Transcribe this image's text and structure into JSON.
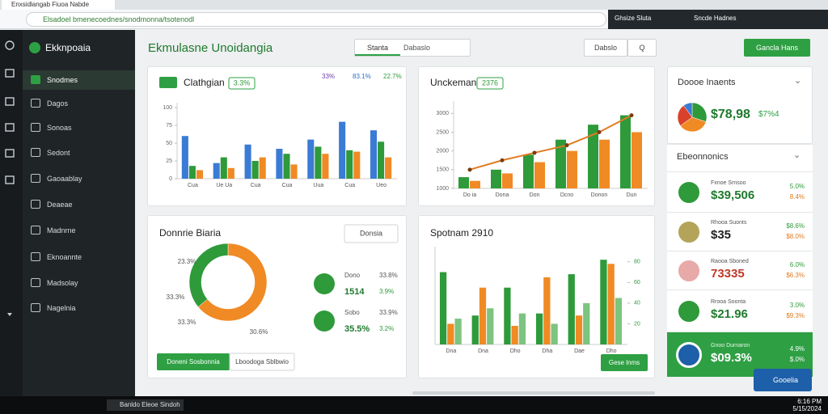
{
  "browser": {
    "tab": "Enxsidlangab Fiuoa Nabde",
    "url": "Elsadoel bmenecoednes/snodmonna/tsotenodl",
    "ext1": "Ghsize Sluta",
    "ext2": "Sncde Hadnes"
  },
  "sidebar": {
    "brand": "Ekknpoaia",
    "items": [
      "Snodmes",
      "Dagos",
      "Sonoas",
      "Sedont",
      "Gaoaablay",
      "Deaeae",
      "Madnrne",
      "Eknoannte",
      "Madsolay",
      "Nagelnia"
    ]
  },
  "header": {
    "title": "Ekmulasne Unoidangia",
    "tabs": [
      "Stanta",
      "Dabaslo"
    ],
    "filter": "Dabslo",
    "search": "Q",
    "button": "Gancla Hans"
  },
  "chart_data": [
    {
      "type": "bar",
      "title": "Clathgian",
      "badge": "3.3%",
      "annotations": [
        {
          "text": "33%",
          "color": "#6a3fb0"
        },
        {
          "text": "83.1%",
          "color": "#2f6fc0"
        },
        {
          "text": "22.7%",
          "color": "#2e9a3a"
        }
      ],
      "categories": [
        "Cua",
        "Ue Ua",
        "Cua",
        "Cua",
        "Uua",
        "Cua",
        "Ueo"
      ],
      "series": [
        {
          "color": "#3a7bd5",
          "values": [
            60,
            22,
            48,
            42,
            55,
            80,
            68
          ]
        },
        {
          "color": "#2e9a3a",
          "values": [
            18,
            30,
            25,
            35,
            45,
            40,
            52
          ]
        },
        {
          "color": "#f08a24",
          "values": [
            12,
            15,
            30,
            20,
            35,
            38,
            30
          ]
        }
      ],
      "ylim": [
        0,
        100
      ],
      "yticks": [
        0,
        25,
        50,
        75,
        100
      ]
    },
    {
      "type": "bar",
      "title": "Unckemani",
      "badge": "2376",
      "categories": [
        "Do ia",
        "Dona",
        "Don",
        "Dcno",
        "Donon",
        "Dun"
      ],
      "series": [
        {
          "color": "#2e9a3a",
          "values": [
            1300,
            1500,
            1900,
            2300,
            2700,
            2950
          ]
        },
        {
          "color": "#f08a24",
          "values": [
            1200,
            1400,
            1700,
            2000,
            2300,
            2500
          ]
        },
        {
          "type": "line",
          "color": "#e07b22",
          "values": [
            1500,
            1750,
            1950,
            2150,
            2500,
            2950
          ]
        }
      ],
      "ylim": [
        1000,
        3200
      ],
      "yticks": [
        1000,
        1500,
        2000,
        2500,
        3000
      ]
    },
    {
      "type": "donut",
      "title": "Donnrie Biaria",
      "dropdown": "Donsia",
      "values": [
        64,
        36
      ],
      "colors": [
        "#f08a24",
        "#2e9a3a"
      ],
      "annotations": [
        "23.3%",
        "33.3%",
        "33.3%",
        "30.6%"
      ],
      "legend": [
        {
          "label": "Dono",
          "pct": "33.8%",
          "value": "1514",
          "change": "3.9%"
        },
        {
          "label": "Sobo",
          "pct": "33.9%",
          "value": "35.5%",
          "change": "3.2%"
        }
      ],
      "buttons": [
        "Doneni Sosbonnia",
        "Lboodoga Sblbwio"
      ]
    },
    {
      "type": "bar",
      "title": "Spotnam 2910",
      "y_axis": "right",
      "categories": [
        "Dna",
        "Dna",
        "Dho",
        "Dha",
        "Dae",
        "Dho"
      ],
      "series": [
        {
          "color": "#2e9a3a",
          "values": [
            70,
            28,
            55,
            30,
            68,
            82
          ]
        },
        {
          "color": "#f08a24",
          "values": [
            20,
            55,
            18,
            65,
            28,
            78
          ]
        },
        {
          "color": "#7cc47f",
          "values": [
            25,
            35,
            30,
            20,
            40,
            45
          ]
        }
      ],
      "ylim": [
        0,
        90
      ],
      "yticks": [
        20,
        40,
        60,
        80
      ],
      "button": "Gese lnms"
    },
    {
      "type": "pie",
      "values": [
        30,
        35,
        25,
        10
      ],
      "colors": [
        "#2e9a3a",
        "#f08a24",
        "#d9412b",
        "#3a7bd5"
      ]
    }
  ],
  "panel": {
    "title": "Doooe Inaents",
    "total": "$78,98",
    "total_change": "$7%4",
    "section": "Ebeonnonics",
    "items": [
      {
        "label": "Fxnoe Srnsoo",
        "value": "$39,506",
        "c1": "5.0%",
        "c2": "8.4%",
        "icon_color": "#2e9a3a",
        "value_color": "#1f7a2e"
      },
      {
        "label": "Rhooa Suonts",
        "value": "$35",
        "c1": "$8.6%",
        "c2": "$8.0%",
        "icon_color": "#b3a45a",
        "value_color": "#222222"
      },
      {
        "label": "Raooa Sboned",
        "value": "73335",
        "c1": "6.0%",
        "c2": "$6.3%",
        "icon_color": "#e8a9a9",
        "value_color": "#c0392b"
      },
      {
        "label": "Rrooa Soonta",
        "value": "$21.96",
        "c1": "3.0%",
        "c2": "$9.3%",
        "icon_color": "#2e9a3a",
        "value_color": "#1f7a2e"
      },
      {
        "label": "Gnoo Durnaron",
        "value": "$09.3%",
        "c1": "4.9%",
        "c2": "$.0%",
        "icon_color": "#1d5fa8",
        "value_color": "#ffffff"
      }
    ],
    "fab": "Gooelia"
  },
  "taskbar": {
    "app": "Banldo Eleoe Sindoh",
    "time": "6:16 PM",
    "date": "5/15/2024"
  }
}
